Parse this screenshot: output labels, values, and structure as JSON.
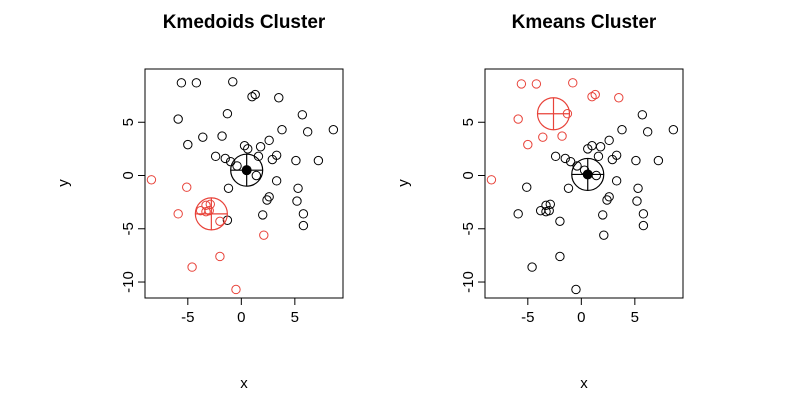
{
  "chart_data": [
    {
      "type": "scatter",
      "title": "Kmedoids Cluster",
      "xlabel": "x",
      "ylabel": "y",
      "xlim": [
        -9,
        9.5
      ],
      "ylim": [
        -11.5,
        10
      ],
      "xticks": [
        -5,
        0,
        5
      ],
      "yticks": [
        -10,
        -5,
        0,
        5
      ],
      "grid": false,
      "series": [
        {
          "color": "#000000",
          "points": [
            [
              -5.6,
              8.7
            ],
            [
              -4.2,
              8.7
            ],
            [
              -0.8,
              8.8
            ],
            [
              1.0,
              7.4
            ],
            [
              1.3,
              7.6
            ],
            [
              -5.9,
              5.3
            ],
            [
              -1.3,
              5.8
            ],
            [
              3.5,
              7.3
            ],
            [
              5.7,
              5.7
            ],
            [
              3.8,
              4.3
            ],
            [
              6.2,
              4.1
            ],
            [
              8.6,
              4.3
            ],
            [
              -3.6,
              3.6
            ],
            [
              -1.8,
              3.7
            ],
            [
              -5.0,
              2.9
            ],
            [
              0.3,
              2.8
            ],
            [
              0.6,
              2.5
            ],
            [
              1.8,
              2.7
            ],
            [
              2.6,
              3.3
            ],
            [
              3.3,
              1.9
            ],
            [
              -2.4,
              1.8
            ],
            [
              -1.5,
              1.6
            ],
            [
              -1.0,
              1.3
            ],
            [
              -0.4,
              0.9
            ],
            [
              1.6,
              1.8
            ],
            [
              2.9,
              1.5
            ],
            [
              5.1,
              1.4
            ],
            [
              7.2,
              1.4
            ],
            [
              1.4,
              0.0
            ],
            [
              3.3,
              -0.5
            ],
            [
              5.3,
              -1.2
            ],
            [
              -1.2,
              -1.2
            ],
            [
              2.6,
              -2.0
            ],
            [
              2.4,
              -2.3
            ],
            [
              5.2,
              -2.4
            ],
            [
              2.0,
              -3.7
            ],
            [
              5.8,
              -3.6
            ],
            [
              5.8,
              -4.7
            ],
            [
              -1.3,
              -4.2
            ]
          ],
          "center": [
            0.5,
            0.5
          ]
        },
        {
          "color": "#e8433a",
          "points": [
            [
              -8.4,
              -0.4
            ],
            [
              -5.1,
              -1.1
            ],
            [
              -5.9,
              -3.6
            ],
            [
              -3.8,
              -3.3
            ],
            [
              -3.3,
              -2.8
            ],
            [
              -2.9,
              -2.7
            ],
            [
              -3.3,
              -3.4
            ],
            [
              -3.0,
              -3.3
            ],
            [
              -2.0,
              -4.3
            ],
            [
              2.1,
              -5.6
            ],
            [
              -2.0,
              -7.6
            ],
            [
              -4.6,
              -8.6
            ],
            [
              -0.5,
              -10.7
            ]
          ],
          "center": [
            -2.8,
            -3.6
          ]
        }
      ]
    },
    {
      "type": "scatter",
      "title": "Kmeans Cluster",
      "xlabel": "x",
      "ylabel": "y",
      "xlim": [
        -9,
        9.5
      ],
      "ylim": [
        -11.5,
        10
      ],
      "xticks": [
        -5,
        0,
        5
      ],
      "yticks": [
        -10,
        -5,
        0,
        5
      ],
      "grid": false,
      "series": [
        {
          "color": "#000000",
          "points": [
            [
              -5.1,
              -1.1
            ],
            [
              -5.9,
              -3.6
            ],
            [
              -3.8,
              -3.3
            ],
            [
              -3.3,
              -2.8
            ],
            [
              -2.9,
              -2.7
            ],
            [
              -3.3,
              -3.4
            ],
            [
              -3.0,
              -3.3
            ],
            [
              -2.0,
              -4.3
            ],
            [
              2.1,
              -5.6
            ],
            [
              -2.0,
              -7.6
            ],
            [
              -4.6,
              -8.6
            ],
            [
              -0.5,
              -10.7
            ],
            [
              1.0,
              2.8
            ],
            [
              0.6,
              2.5
            ],
            [
              1.8,
              2.7
            ],
            [
              2.6,
              3.3
            ],
            [
              3.3,
              1.9
            ],
            [
              3.8,
              4.3
            ],
            [
              5.7,
              5.7
            ],
            [
              6.2,
              4.1
            ],
            [
              8.6,
              4.3
            ],
            [
              -2.4,
              1.8
            ],
            [
              -1.5,
              1.6
            ],
            [
              -1.0,
              1.3
            ],
            [
              -0.4,
              0.9
            ],
            [
              1.6,
              1.8
            ],
            [
              2.9,
              1.5
            ],
            [
              5.1,
              1.4
            ],
            [
              7.2,
              1.4
            ],
            [
              1.4,
              0.0
            ],
            [
              3.3,
              -0.5
            ],
            [
              5.3,
              -1.2
            ],
            [
              -1.2,
              -1.2
            ],
            [
              2.6,
              -2.0
            ],
            [
              2.4,
              -2.3
            ],
            [
              5.2,
              -2.4
            ],
            [
              2.0,
              -3.7
            ],
            [
              5.8,
              -3.6
            ],
            [
              5.8,
              -4.7
            ],
            [
              0.3,
              0.5
            ]
          ],
          "center": [
            0.6,
            0.1
          ]
        },
        {
          "color": "#e8433a",
          "points": [
            [
              -8.4,
              -0.4
            ],
            [
              -5.6,
              8.6
            ],
            [
              -4.2,
              8.6
            ],
            [
              -0.8,
              8.7
            ],
            [
              1.0,
              7.4
            ],
            [
              1.3,
              7.6
            ],
            [
              3.5,
              7.3
            ],
            [
              -5.9,
              5.3
            ],
            [
              -1.3,
              5.8
            ],
            [
              -3.6,
              3.6
            ],
            [
              -1.8,
              3.7
            ],
            [
              -5.0,
              2.9
            ]
          ],
          "center": [
            -2.6,
            5.8
          ]
        }
      ]
    }
  ]
}
